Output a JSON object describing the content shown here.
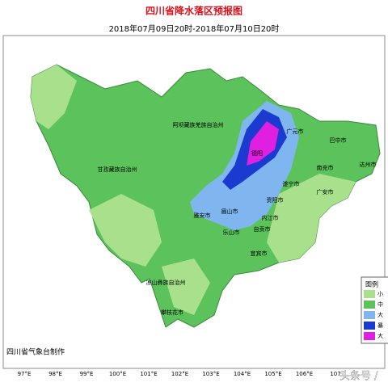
{
  "title": "四川省降水落区预报图",
  "subtitle": "2018年07月09日20时-2018年07月10日20时",
  "places": [
    "阿坝藏族羌族自治州",
    "甘孜藏族自治州",
    "广元市",
    "巴中市",
    "达州市",
    "南充市",
    "德阳",
    "遂宁市",
    "广安市",
    "资阳市",
    "雅安市",
    "眉山市",
    "内江市",
    "乐山市",
    "自贡市",
    "宜宾市",
    "凉山彝族自治州",
    "攀枝花市"
  ],
  "legend": {
    "title": "图例",
    "items": [
      "小",
      "中",
      "大",
      "暴",
      "大"
    ]
  },
  "credit": "四川省气象台制作",
  "longitudes": [
    "97°E",
    "98°E",
    "99°E",
    "100°E",
    "101°E",
    "102°E",
    "103°E",
    "104°E",
    "105°E",
    "106°E",
    "107"
  ],
  "watermark": "头条号 /"
}
